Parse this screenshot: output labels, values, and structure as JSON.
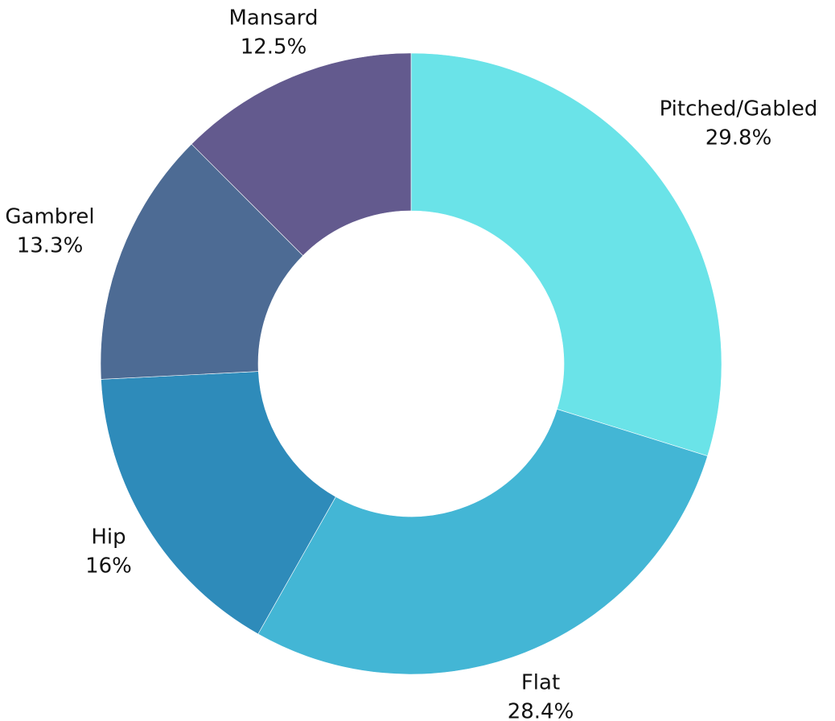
{
  "chart_data": {
    "type": "donut",
    "categories": [
      "Pitched/Gabled",
      "Flat",
      "Hip",
      "Gambrel",
      "Mansard"
    ],
    "values": [
      29.8,
      28.4,
      16,
      13.3,
      12.5
    ],
    "value_labels": [
      "29.8%",
      "28.4%",
      "16%",
      "13.3%",
      "12.5%"
    ],
    "colors": [
      "#6ae3e8",
      "#43b6d5",
      "#2e8bba",
      "#4d6b94",
      "#635a8e"
    ]
  }
}
